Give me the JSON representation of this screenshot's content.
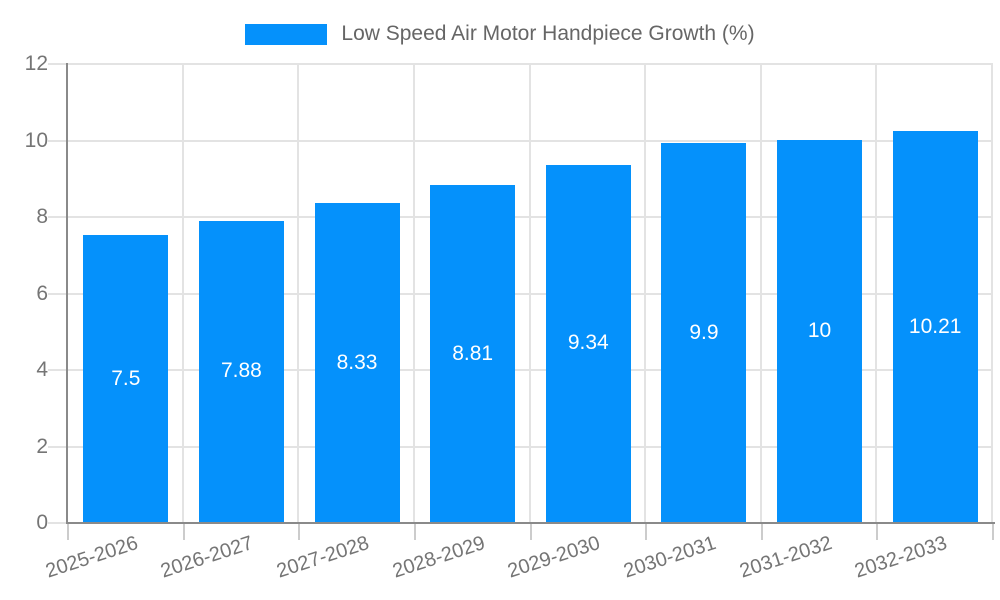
{
  "chart_data": {
    "type": "bar",
    "title": "",
    "legend": "Low Speed Air Motor Handpiece Growth (%)",
    "legend_position": "top",
    "categories": [
      "2025-2026",
      "2026-2027",
      "2027-2028",
      "2028-2029",
      "2029-2030",
      "2030-2031",
      "2031-2032",
      "2032-2033"
    ],
    "values": [
      7.5,
      7.88,
      8.33,
      8.81,
      9.34,
      9.9,
      10,
      10.21
    ],
    "value_labels": [
      "7.5",
      "7.88",
      "8.33",
      "8.81",
      "9.34",
      "9.9",
      "10",
      "10.21"
    ],
    "xlabel": "",
    "ylabel": "",
    "ylim": [
      0,
      12
    ],
    "yticks": [
      0,
      2,
      4,
      6,
      8,
      10,
      12
    ],
    "grid": true
  },
  "colors": {
    "bar": "#0591FB",
    "axis": "#8a8a8a",
    "gridline": "#e3e3e3",
    "tick_text": "#757575",
    "legend_text": "#666666",
    "bar_label_text": "#ffffff",
    "background": "#ffffff"
  }
}
